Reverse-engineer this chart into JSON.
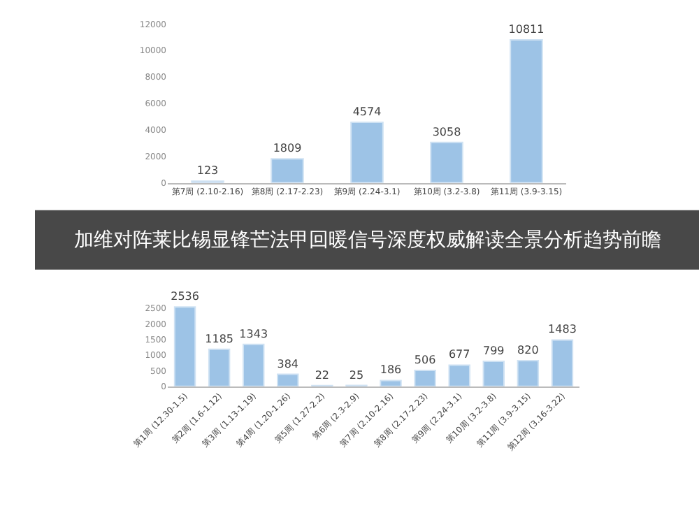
{
  "chart_data": [
    {
      "type": "bar",
      "categories": [
        "第7周 (2.10-2.16)",
        "第8周 (2.17-2.23)",
        "第9周 (2.24-3.1)",
        "第10周 (3.2-3.8)",
        "第11周 (3.9-3.15)"
      ],
      "values": [
        123,
        1809,
        4574,
        3058,
        10811
      ],
      "color": "#9dc3e6",
      "data_labels": true,
      "ylim": [
        0,
        12000
      ],
      "yticks": [
        0,
        2000,
        4000,
        6000,
        8000,
        10000,
        12000
      ]
    },
    {
      "type": "bar",
      "title": "加维对阵莱比锡显锋芒法甲回暖信号深度权威解读全景分析趋势前瞻",
      "categories": [
        "第1周 (12.30-1.5)",
        "第2周 (1.6-1.12)",
        "第3周 (1.13-1.19)",
        "第4周 (1.20-1.26)",
        "第5周 (1.27-2.2)",
        "第6周 (2.3-2.9)",
        "第7周 (2.10-2.16)",
        "第8周 (2.17-2.23)",
        "第9周 (2.24-3.1)",
        "第10周 (3.2-3.8)",
        "第11周 (3.9-3.15)",
        "第12周 (3.16-3.22)"
      ],
      "values": [
        2536,
        1185,
        1343,
        384,
        22,
        25,
        186,
        506,
        677,
        799,
        820,
        1483
      ],
      "color": "#9dc3e6",
      "data_labels": true,
      "ylim": [
        0,
        2700
      ],
      "yticks": [
        0,
        500,
        1000,
        1500,
        2000,
        2500
      ]
    }
  ]
}
